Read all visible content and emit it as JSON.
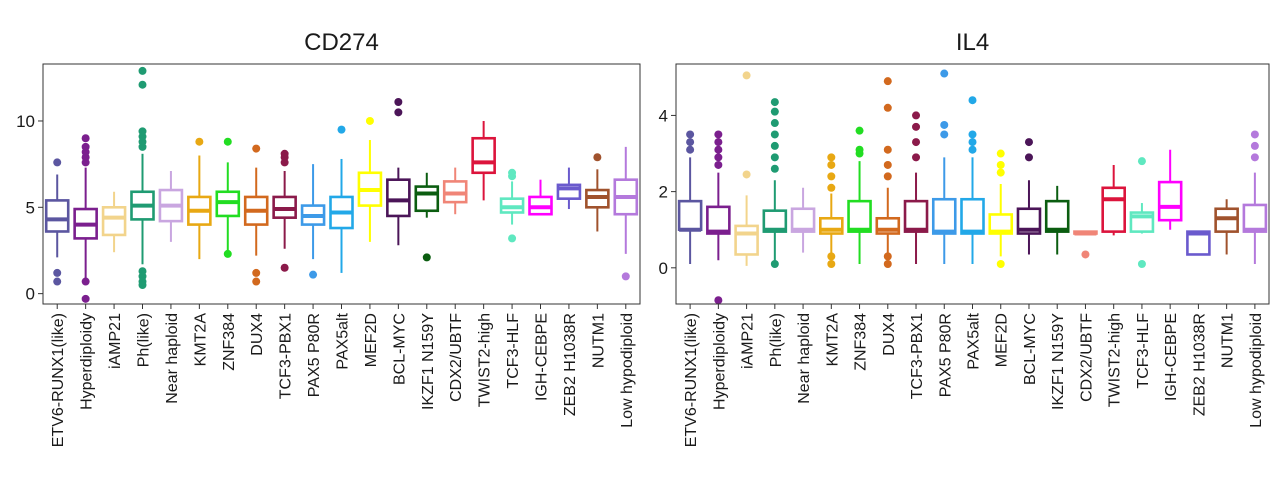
{
  "chart_data": [
    {
      "type": "box",
      "title": "CD274",
      "xlabel": "",
      "ylabel": "",
      "ylim": [
        -0.6,
        13.3
      ],
      "yticks": [
        0,
        5,
        10
      ],
      "categories": [
        "ETV6-RUNX1(like)",
        "Hyperdiploidy",
        "iAMP21",
        "Ph(like)",
        "Near haploid",
        "KMT2A",
        "ZNF384",
        "DUX4",
        "TCF3-PBX1",
        "PAX5 P80R",
        "PAX5alt",
        "MEF2D",
        "BCL-MYC",
        "IKZF1 N159Y",
        "CDX2/UBTF",
        "TWIST2-high",
        "TCF3-HLF",
        "IGH-CEBPE",
        "ZEB2 H1038R",
        "NUTM1",
        "Low hypodiploid"
      ],
      "boxes": [
        {
          "lo": 2.1,
          "q1": 3.6,
          "med": 4.3,
          "q3": 5.4,
          "hi": 6.9,
          "out": [
            7.6,
            1.2,
            0.7
          ]
        },
        {
          "lo": 0.8,
          "q1": 3.2,
          "med": 4.0,
          "q3": 4.9,
          "hi": 7.3,
          "out": [
            7.6,
            7.9,
            8.2,
            8.5,
            9.0,
            0.7,
            -0.3
          ]
        },
        {
          "lo": 2.4,
          "q1": 3.4,
          "med": 4.4,
          "q3": 5.0,
          "hi": 5.9,
          "out": []
        },
        {
          "lo": 1.7,
          "q1": 4.3,
          "med": 5.1,
          "q3": 5.9,
          "hi": 8.1,
          "out": [
            8.5,
            8.8,
            9.1,
            9.4,
            12.1,
            12.9,
            1.3,
            1.0,
            0.7,
            0.5
          ]
        },
        {
          "lo": 3.0,
          "q1": 4.2,
          "med": 5.1,
          "q3": 6.0,
          "hi": 7.1,
          "out": []
        },
        {
          "lo": 2.0,
          "q1": 4.0,
          "med": 4.8,
          "q3": 5.6,
          "hi": 8.0,
          "out": [
            8.8
          ]
        },
        {
          "lo": 2.4,
          "q1": 4.5,
          "med": 5.3,
          "q3": 5.9,
          "hi": 7.6,
          "out": [
            8.8,
            2.3
          ]
        },
        {
          "lo": 2.2,
          "q1": 4.0,
          "med": 4.8,
          "q3": 5.6,
          "hi": 7.3,
          "out": [
            8.4,
            1.2,
            0.7
          ]
        },
        {
          "lo": 2.6,
          "q1": 4.4,
          "med": 4.9,
          "q3": 5.6,
          "hi": 7.1,
          "out": [
            7.6,
            7.9,
            8.1,
            1.5
          ]
        },
        {
          "lo": 2.0,
          "q1": 4.0,
          "med": 4.5,
          "q3": 5.1,
          "hi": 7.5,
          "out": [
            1.1
          ]
        },
        {
          "lo": 1.2,
          "q1": 3.8,
          "med": 4.7,
          "q3": 5.6,
          "hi": 7.8,
          "out": [
            9.5
          ]
        },
        {
          "lo": 3.0,
          "q1": 5.1,
          "med": 6.0,
          "q3": 7.0,
          "hi": 8.9,
          "out": [
            10.0
          ]
        },
        {
          "lo": 2.8,
          "q1": 4.5,
          "med": 5.4,
          "q3": 6.6,
          "hi": 7.3,
          "out": [
            10.5,
            11.1
          ]
        },
        {
          "lo": 4.4,
          "q1": 4.8,
          "med": 5.8,
          "q3": 6.2,
          "hi": 7.0,
          "out": [
            2.1
          ]
        },
        {
          "lo": 4.6,
          "q1": 5.3,
          "med": 5.8,
          "q3": 6.5,
          "hi": 7.3,
          "out": []
        },
        {
          "lo": 5.4,
          "q1": 7.0,
          "med": 7.6,
          "q3": 9.0,
          "hi": 10.0,
          "out": []
        },
        {
          "lo": 4.0,
          "q1": 4.7,
          "med": 5.0,
          "q3": 5.5,
          "hi": 6.5,
          "out": [
            6.8,
            7.0,
            3.2
          ]
        },
        {
          "lo": 4.6,
          "q1": 4.6,
          "med": 5.0,
          "q3": 5.6,
          "hi": 6.6,
          "out": []
        },
        {
          "lo": 4.9,
          "q1": 5.5,
          "med": 6.1,
          "q3": 6.3,
          "hi": 7.3,
          "out": []
        },
        {
          "lo": 3.6,
          "q1": 5.0,
          "med": 5.6,
          "q3": 6.0,
          "hi": 7.2,
          "out": [
            7.9
          ]
        },
        {
          "lo": 2.3,
          "q1": 4.6,
          "med": 5.6,
          "q3": 6.6,
          "hi": 8.5,
          "out": [
            1.0
          ]
        }
      ]
    },
    {
      "type": "box",
      "title": "IL4",
      "xlabel": "",
      "ylabel": "",
      "ylim": [
        -0.95,
        5.35
      ],
      "yticks": [
        0,
        2,
        4
      ],
      "categories": [
        "ETV6-RUNX1(like)",
        "Hyperdiploidy",
        "iAMP21",
        "Ph(like)",
        "Near haploid",
        "KMT2A",
        "ZNF384",
        "DUX4",
        "TCF3-PBX1",
        "PAX5 P80R",
        "PAX5alt",
        "MEF2D",
        "BCL-MYC",
        "IKZF1 N159Y",
        "CDX2/UBTF",
        "TWIST2-high",
        "TCF3-HLF",
        "IGH-CEBPE",
        "ZEB2 H1038R",
        "NUTM1",
        "Low hypodiploid"
      ],
      "boxes": [
        {
          "lo": 0.1,
          "q1": 1.0,
          "med": 1.0,
          "q3": 1.75,
          "hi": 2.9,
          "out": [
            3.1,
            3.3,
            3.5
          ]
        },
        {
          "lo": 0.2,
          "q1": 0.9,
          "med": 0.95,
          "q3": 1.6,
          "hi": 2.5,
          "out": [
            2.7,
            2.9,
            3.1,
            3.3,
            3.5,
            -0.85
          ]
        },
        {
          "lo": 0.05,
          "q1": 0.35,
          "med": 0.9,
          "q3": 1.1,
          "hi": 1.9,
          "out": [
            2.45,
            5.05
          ]
        },
        {
          "lo": 0.1,
          "q1": 0.95,
          "med": 1.0,
          "q3": 1.5,
          "hi": 2.3,
          "out": [
            2.6,
            2.9,
            3.2,
            3.5,
            3.8,
            4.1,
            4.35,
            0.1
          ]
        },
        {
          "lo": 0.4,
          "q1": 0.95,
          "med": 1.0,
          "q3": 1.55,
          "hi": 2.1,
          "out": []
        },
        {
          "lo": 0.4,
          "q1": 0.9,
          "med": 1.0,
          "q3": 1.3,
          "hi": 1.95,
          "out": [
            2.1,
            2.4,
            2.7,
            2.9,
            0.3,
            0.1
          ]
        },
        {
          "lo": 0.1,
          "q1": 0.95,
          "med": 1.0,
          "q3": 1.75,
          "hi": 2.8,
          "out": [
            3.0,
            3.1,
            3.6
          ]
        },
        {
          "lo": 0.2,
          "q1": 0.9,
          "med": 1.0,
          "q3": 1.3,
          "hi": 2.1,
          "out": [
            2.4,
            2.7,
            3.1,
            4.2,
            4.9,
            0.3,
            0.1
          ]
        },
        {
          "lo": 0.1,
          "q1": 0.95,
          "med": 1.0,
          "q3": 1.75,
          "hi": 2.5,
          "out": [
            2.9,
            3.3,
            3.7,
            4.0
          ]
        },
        {
          "lo": 0.1,
          "q1": 0.9,
          "med": 0.95,
          "q3": 1.8,
          "hi": 2.9,
          "out": [
            3.5,
            3.75,
            5.1
          ]
        },
        {
          "lo": 0.1,
          "q1": 0.9,
          "med": 0.95,
          "q3": 1.8,
          "hi": 2.9,
          "out": [
            3.1,
            3.3,
            3.5,
            4.4
          ]
        },
        {
          "lo": 0.3,
          "q1": 0.9,
          "med": 0.95,
          "q3": 1.4,
          "hi": 2.2,
          "out": [
            2.5,
            2.7,
            3.0,
            0.1
          ]
        },
        {
          "lo": 0.35,
          "q1": 0.9,
          "med": 1.0,
          "q3": 1.55,
          "hi": 2.3,
          "out": [
            2.9,
            3.3
          ]
        },
        {
          "lo": 0.35,
          "q1": 0.95,
          "med": 1.0,
          "q3": 1.75,
          "hi": 2.15,
          "out": []
        },
        {
          "lo": 0.9,
          "q1": 0.9,
          "med": 0.9,
          "q3": 0.95,
          "hi": 0.95,
          "out": [
            0.35
          ]
        },
        {
          "lo": 0.85,
          "q1": 0.95,
          "med": 1.8,
          "q3": 2.1,
          "hi": 2.7,
          "out": []
        },
        {
          "lo": 0.9,
          "q1": 0.95,
          "med": 1.35,
          "q3": 1.45,
          "hi": 1.7,
          "out": [
            2.8,
            0.1
          ]
        },
        {
          "lo": 1.0,
          "q1": 1.25,
          "med": 1.6,
          "q3": 2.25,
          "hi": 3.1,
          "out": []
        },
        {
          "lo": 0.35,
          "q1": 0.35,
          "med": 0.9,
          "q3": 0.95,
          "hi": 0.95,
          "out": []
        },
        {
          "lo": 0.35,
          "q1": 0.95,
          "med": 1.3,
          "q3": 1.55,
          "hi": 1.8,
          "out": []
        },
        {
          "lo": 0.1,
          "q1": 0.95,
          "med": 1.0,
          "q3": 1.65,
          "hi": 2.5,
          "out": [
            2.9,
            3.2,
            3.5
          ]
        }
      ]
    }
  ],
  "colors": [
    "#5B56A0",
    "#7B1F8E",
    "#F2D48C",
    "#1F9B72",
    "#C9A6E0",
    "#E8A813",
    "#22DD22",
    "#D2691E",
    "#8B1A4A",
    "#3D9AE8",
    "#22A8E8",
    "#FFFF00",
    "#4B1558",
    "#0B5D10",
    "#F08577",
    "#DC143C",
    "#5FE8C0",
    "#FF00FF",
    "#6A5ACD",
    "#A0522D",
    "#B479DC"
  ]
}
